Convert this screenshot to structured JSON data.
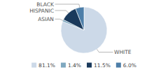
{
  "chart_data": {
    "type": "pie",
    "categories": [
      "WHITE",
      "ASIAN",
      "HISPANIC",
      "BLACK"
    ],
    "values": [
      81.1,
      1.4,
      11.5,
      6.0
    ],
    "value_labels": [
      "81.1%",
      "1.4%",
      "11.5%",
      "6.0%"
    ],
    "colors": [
      "#ccd9e8",
      "#7fa8c0",
      "#1a3a5c",
      "#4d7ea8"
    ],
    "legend": "bottom"
  }
}
